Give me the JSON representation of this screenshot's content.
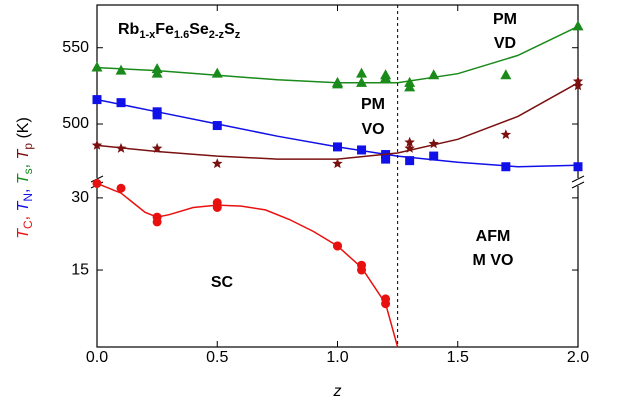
{
  "chart_data": [
    {
      "type": "scatter",
      "panel": "upper",
      "ylim": [
        462,
        578
      ],
      "yticks": [
        500,
        550
      ],
      "formula": [
        {
          "text": "Rb",
          "sub": "1-x"
        },
        {
          "text": "Fe",
          "sub": "1.6"
        },
        {
          "text": "Se",
          "sub": "2-z"
        },
        {
          "text": "S",
          "sub": "z"
        }
      ],
      "annotations": [
        {
          "text": "PM",
          "color": "#801010"
        },
        {
          "text": "VD",
          "color": "#ff10ff"
        },
        {
          "text": "PM",
          "color": "#108080"
        },
        {
          "text": "VO",
          "color": "#148c14"
        },
        {
          "text": "AFM",
          "color": "#1414e6"
        },
        {
          "text": "M VO",
          "color": "#1414e6"
        }
      ],
      "series": [
        {
          "marker": "triangle",
          "color": "#1a8a1a",
          "x": [
            0,
            0.1,
            0.25,
            0.25,
            0.5,
            1.0,
            1.0,
            1.1,
            1.1,
            1.2,
            1.2,
            1.3,
            1.3,
            1.4,
            1.7,
            2.0
          ],
          "values": [
            537,
            535,
            536,
            533,
            533,
            527,
            526,
            533,
            527,
            532,
            530,
            527,
            524,
            532,
            532,
            564
          ]
        },
        {
          "marker": "square",
          "color": "#1010e8",
          "x": [
            0,
            0.1,
            0.25,
            0.25,
            0.5,
            1.0,
            1.1,
            1.2,
            1.2,
            1.3,
            1.4,
            1.7,
            2.0
          ],
          "values": [
            516,
            514,
            508,
            506,
            499,
            485,
            483,
            480,
            477,
            476,
            479,
            472,
            472
          ]
        },
        {
          "marker": "star",
          "color": "#7a1010",
          "x": [
            0,
            0.1,
            0.25,
            0.5,
            1.0,
            1.3,
            1.3,
            1.4,
            1.7,
            2.0,
            2.0
          ],
          "values": [
            486,
            484,
            484,
            474,
            474,
            488,
            484,
            487,
            493,
            528,
            525
          ]
        },
        {
          "marker": "line",
          "color": "#1a8a1a",
          "x": [
            0,
            0.25,
            0.5,
            0.75,
            1.0,
            1.25,
            1.5,
            1.75,
            2.0
          ],
          "values": [
            537,
            535,
            532,
            529,
            527,
            527,
            533,
            545,
            564
          ]
        },
        {
          "marker": "line",
          "color": "#1010e8",
          "x": [
            0,
            0.25,
            0.5,
            0.75,
            1.0,
            1.25,
            1.5,
            1.75,
            2.0
          ],
          "values": [
            516,
            508,
            500,
            492,
            485,
            479,
            475,
            472,
            473
          ]
        },
        {
          "marker": "line",
          "color": "#7a1010",
          "x": [
            0,
            0.25,
            0.5,
            0.75,
            1.0,
            1.25,
            1.5,
            1.75,
            2.0
          ],
          "values": [
            486,
            482,
            479,
            477,
            477,
            481,
            490,
            505,
            527
          ]
        }
      ]
    },
    {
      "type": "scatter",
      "panel": "lower",
      "ylim": [
        -1,
        33.3
      ],
      "yticks": [
        15,
        30
      ],
      "xlim": [
        0,
        2
      ],
      "xticks": [
        {
          "value": 0,
          "label": "0.0"
        },
        {
          "value": 0.5,
          "label": "0.5"
        },
        {
          "value": 1,
          "label": "1.0"
        },
        {
          "value": 1.5,
          "label": "1.5"
        },
        {
          "value": 2,
          "label": "2.0"
        }
      ],
      "xlabel": "z",
      "vline": 1.25,
      "ylabel": [
        {
          "text": "T",
          "sub": "C",
          "color": "#e8110f"
        },
        {
          "text": ", ",
          "color": "#e8110f"
        },
        {
          "text": "T",
          "sub": "N",
          "color": "#1010e8"
        },
        {
          "text": ", ",
          "color": "#1010e8"
        },
        {
          "text": "T",
          "sub": "s",
          "color": "#1a8a1a"
        },
        {
          "text": ", ",
          "color": "#1a8a1a"
        },
        {
          "text": "T",
          "sub": "p",
          "color": "#7a1010"
        },
        {
          "text": " (K)",
          "color": "#000000"
        }
      ],
      "annotations": [
        {
          "text": "SC",
          "color": "#e8110f"
        }
      ],
      "series": [
        {
          "marker": "circle",
          "color": "#e8110f",
          "x": [
            0,
            0.1,
            0.25,
            0.25,
            0.5,
            0.5,
            1.0,
            1.0,
            1.1,
            1.1,
            1.2,
            1.2
          ],
          "values": [
            33,
            32,
            26,
            25,
            29,
            28,
            20,
            20,
            16,
            15,
            9,
            8
          ]
        },
        {
          "marker": "line",
          "color": "#e8110f",
          "x": [
            0,
            0.1,
            0.2,
            0.25,
            0.3,
            0.4,
            0.5,
            0.6,
            0.7,
            0.8,
            0.9,
            1.0,
            1.1,
            1.2,
            1.25
          ],
          "values": [
            33,
            31,
            27,
            26,
            26.5,
            28,
            28.5,
            28.3,
            27.5,
            25.5,
            23,
            20,
            15.5,
            8,
            -1
          ]
        }
      ]
    }
  ]
}
